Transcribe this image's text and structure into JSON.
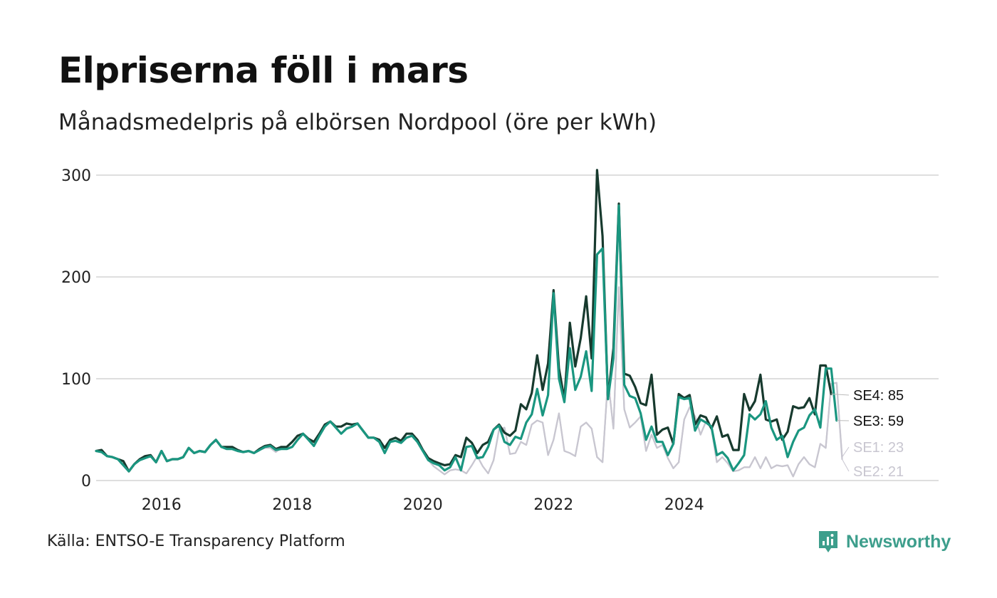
{
  "title": "Elpriserna föll i mars",
  "subtitle": "Månadsmedelpris på elbörsen Nordpool (öre per kWh)",
  "source": "Källa: ENTSO-E Transparency Platform",
  "brand": {
    "name": "Newsworthy",
    "icon": "newsworthy-logo-icon",
    "color": "#3d9e8c"
  },
  "chart_data": {
    "type": "line",
    "title": "Elpriserna föll i mars",
    "subtitle": "Månadsmedelpris på elbörsen Nordpool (öre per kWh)",
    "xlabel": "",
    "ylabel": "öre per kWh",
    "ylim": [
      0,
      300
    ],
    "yticks": [
      0,
      100,
      200,
      300
    ],
    "xticks": [
      {
        "label": "2016",
        "value": 2016.0
      },
      {
        "label": "2018",
        "value": 2018.0
      },
      {
        "label": "2020",
        "value": 2020.0
      },
      {
        "label": "2022",
        "value": 2022.0
      },
      {
        "label": "2024",
        "value": 2024.0
      }
    ],
    "x_start": 2015.0,
    "x_step_months": 1,
    "grid": true,
    "legend": "end-of-line labels (right)",
    "series": [
      {
        "name": "SE1",
        "end_label": "SE1: 23",
        "color": "#c8c6d0",
        "width": 2.2,
        "values": [
          29,
          30,
          24,
          23,
          21,
          19,
          9,
          16,
          21,
          24,
          25,
          18,
          29,
          19,
          21,
          21,
          23,
          32,
          27,
          29,
          28,
          35,
          39,
          33,
          32,
          32,
          29,
          28,
          29,
          27,
          30,
          32,
          32,
          28,
          32,
          31,
          33,
          40,
          46,
          40,
          35,
          44,
          53,
          58,
          53,
          46,
          52,
          53,
          56,
          49,
          42,
          42,
          38,
          27,
          38,
          39,
          37,
          42,
          44,
          38,
          29,
          20,
          14,
          10,
          6,
          10,
          11,
          10,
          7,
          15,
          24,
          14,
          7,
          20,
          50,
          52,
          26,
          27,
          38,
          35,
          55,
          59,
          57,
          25,
          40,
          66,
          29,
          27,
          24,
          53,
          57,
          51,
          23,
          18,
          100,
          51,
          190,
          70,
          52,
          57,
          63,
          29,
          45,
          32,
          35,
          22,
          12,
          18,
          60,
          72,
          63,
          45,
          58,
          51,
          18,
          23,
          17,
          9,
          10,
          13,
          13,
          23,
          12,
          23,
          12,
          15,
          14,
          15,
          4,
          16,
          23,
          16,
          13,
          36,
          32,
          95,
          96,
          23
        ]
      },
      {
        "name": "SE2",
        "end_label": "SE2: 21",
        "color": "#c8c6d0",
        "width": 2.2,
        "values": [
          29,
          30,
          24,
          23,
          21,
          19,
          9,
          16,
          21,
          24,
          25,
          18,
          29,
          19,
          21,
          21,
          23,
          32,
          27,
          29,
          28,
          35,
          39,
          33,
          32,
          32,
          29,
          28,
          29,
          27,
          30,
          32,
          32,
          28,
          32,
          31,
          33,
          40,
          46,
          40,
          35,
          44,
          53,
          58,
          53,
          46,
          52,
          53,
          56,
          49,
          42,
          42,
          38,
          27,
          38,
          39,
          37,
          42,
          44,
          38,
          29,
          20,
          14,
          10,
          6,
          10,
          11,
          10,
          7,
          15,
          24,
          14,
          7,
          20,
          50,
          52,
          26,
          27,
          38,
          35,
          55,
          59,
          57,
          25,
          40,
          66,
          29,
          27,
          24,
          53,
          57,
          51,
          23,
          18,
          100,
          51,
          190,
          70,
          52,
          57,
          63,
          29,
          45,
          32,
          35,
          22,
          12,
          18,
          60,
          72,
          63,
          45,
          58,
          51,
          18,
          23,
          17,
          9,
          10,
          13,
          13,
          23,
          12,
          23,
          12,
          15,
          14,
          15,
          4,
          16,
          23,
          16,
          13,
          36,
          32,
          95,
          96,
          21
        ]
      },
      {
        "name": "SE4",
        "end_label": "SE4: 85",
        "color": "#173a2e",
        "width": 3.2,
        "values": [
          29,
          30,
          24,
          23,
          21,
          19,
          9,
          16,
          21,
          24,
          25,
          18,
          29,
          19,
          21,
          21,
          23,
          32,
          27,
          29,
          28,
          35,
          40,
          33,
          33,
          33,
          30,
          28,
          29,
          27,
          31,
          34,
          35,
          31,
          33,
          33,
          38,
          44,
          46,
          41,
          38,
          46,
          55,
          58,
          53,
          53,
          56,
          55,
          56,
          49,
          42,
          42,
          40,
          32,
          40,
          42,
          39,
          46,
          46,
          40,
          30,
          22,
          19,
          17,
          15,
          16,
          25,
          23,
          42,
          37,
          27,
          35,
          38,
          50,
          55,
          47,
          44,
          49,
          75,
          70,
          86,
          123,
          89,
          115,
          187,
          110,
          80,
          155,
          112,
          140,
          181,
          120,
          305,
          240,
          80,
          130,
          272,
          105,
          103,
          92,
          76,
          74,
          104,
          45,
          50,
          52,
          36,
          85,
          81,
          84,
          55,
          64,
          62,
          51,
          63,
          43,
          45,
          30,
          30,
          85,
          69,
          78,
          104,
          60,
          58,
          60,
          40,
          48,
          73,
          71,
          72,
          81,
          65,
          113,
          113,
          85
        ]
      },
      {
        "name": "SE3",
        "end_label": "SE3: 59",
        "color": "#1a9680",
        "width": 3.2,
        "values": [
          29,
          28,
          24,
          23,
          21,
          15,
          9,
          16,
          20,
          22,
          24,
          18,
          29,
          19,
          21,
          21,
          23,
          32,
          27,
          29,
          28,
          35,
          40,
          33,
          31,
          31,
          29,
          28,
          29,
          27,
          30,
          33,
          34,
          30,
          31,
          31,
          33,
          40,
          46,
          40,
          34,
          44,
          53,
          58,
          52,
          46,
          51,
          53,
          56,
          49,
          42,
          42,
          38,
          27,
          38,
          39,
          37,
          42,
          44,
          38,
          29,
          20,
          17,
          15,
          10,
          13,
          23,
          10,
          33,
          34,
          22,
          23,
          33,
          50,
          54,
          38,
          35,
          43,
          41,
          57,
          65,
          90,
          64,
          84,
          184,
          100,
          77,
          130,
          89,
          102,
          127,
          88,
          222,
          228,
          80,
          120,
          270,
          94,
          83,
          81,
          66,
          40,
          53,
          38,
          38,
          25,
          36,
          82,
          80,
          81,
          49,
          60,
          57,
          53,
          25,
          28,
          22,
          10,
          17,
          25,
          65,
          60,
          65,
          78,
          52,
          40,
          44,
          23,
          38,
          49,
          52,
          64,
          70,
          52,
          110,
          110,
          59
        ]
      }
    ]
  }
}
